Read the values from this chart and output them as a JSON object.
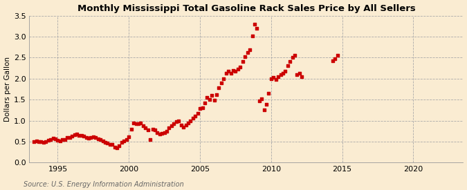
{
  "title": "Monthly Mississippi Total Gasoline Rack Sales Price by All Sellers",
  "ylabel": "Dollars per Gallon",
  "source": "Source: U.S. Energy Information Administration",
  "background_color": "#faecd2",
  "marker_color": "#cc0000",
  "marker": "s",
  "marker_size": 2.5,
  "xlim": [
    1993.0,
    2023.5
  ],
  "ylim": [
    0.0,
    3.5
  ],
  "yticks": [
    0.0,
    0.5,
    1.0,
    1.5,
    2.0,
    2.5,
    3.0,
    3.5
  ],
  "xticks": [
    1995,
    2000,
    2005,
    2010,
    2015,
    2020
  ],
  "data": [
    [
      1993.33,
      0.5
    ],
    [
      1993.5,
      0.52
    ],
    [
      1993.67,
      0.5
    ],
    [
      1993.83,
      0.5
    ],
    [
      1994.0,
      0.49
    ],
    [
      1994.17,
      0.5
    ],
    [
      1994.33,
      0.53
    ],
    [
      1994.5,
      0.55
    ],
    [
      1994.67,
      0.58
    ],
    [
      1994.83,
      0.57
    ],
    [
      1995.0,
      0.53
    ],
    [
      1995.17,
      0.52
    ],
    [
      1995.33,
      0.54
    ],
    [
      1995.5,
      0.55
    ],
    [
      1995.67,
      0.59
    ],
    [
      1995.83,
      0.6
    ],
    [
      1996.0,
      0.63
    ],
    [
      1996.17,
      0.67
    ],
    [
      1996.33,
      0.68
    ],
    [
      1996.5,
      0.65
    ],
    [
      1996.67,
      0.64
    ],
    [
      1996.83,
      0.63
    ],
    [
      1997.0,
      0.6
    ],
    [
      1997.17,
      0.58
    ],
    [
      1997.33,
      0.6
    ],
    [
      1997.5,
      0.62
    ],
    [
      1997.67,
      0.6
    ],
    [
      1997.83,
      0.57
    ],
    [
      1998.0,
      0.54
    ],
    [
      1998.17,
      0.51
    ],
    [
      1998.33,
      0.49
    ],
    [
      1998.5,
      0.47
    ],
    [
      1998.67,
      0.44
    ],
    [
      1998.83,
      0.43
    ],
    [
      1999.0,
      0.37
    ],
    [
      1999.17,
      0.35
    ],
    [
      1999.33,
      0.4
    ],
    [
      1999.5,
      0.48
    ],
    [
      1999.67,
      0.52
    ],
    [
      1999.83,
      0.55
    ],
    [
      2000.0,
      0.62
    ],
    [
      2000.17,
      0.8
    ],
    [
      2000.33,
      0.95
    ],
    [
      2000.5,
      0.93
    ],
    [
      2000.67,
      0.92
    ],
    [
      2000.83,
      0.95
    ],
    [
      2001.0,
      0.88
    ],
    [
      2001.17,
      0.82
    ],
    [
      2001.33,
      0.78
    ],
    [
      2001.5,
      0.55
    ],
    [
      2001.67,
      0.8
    ],
    [
      2001.83,
      0.78
    ],
    [
      2002.0,
      0.72
    ],
    [
      2002.17,
      0.68
    ],
    [
      2002.33,
      0.7
    ],
    [
      2002.5,
      0.72
    ],
    [
      2002.67,
      0.75
    ],
    [
      2002.83,
      0.82
    ],
    [
      2003.0,
      0.88
    ],
    [
      2003.17,
      0.92
    ],
    [
      2003.33,
      0.97
    ],
    [
      2003.5,
      1.0
    ],
    [
      2003.67,
      0.9
    ],
    [
      2003.83,
      0.85
    ],
    [
      2004.0,
      0.9
    ],
    [
      2004.17,
      0.95
    ],
    [
      2004.33,
      1.0
    ],
    [
      2004.5,
      1.05
    ],
    [
      2004.67,
      1.1
    ],
    [
      2004.83,
      1.18
    ],
    [
      2005.0,
      1.28
    ],
    [
      2005.17,
      1.3
    ],
    [
      2005.33,
      1.42
    ],
    [
      2005.5,
      1.55
    ],
    [
      2005.67,
      1.5
    ],
    [
      2005.83,
      1.6
    ],
    [
      2006.0,
      1.48
    ],
    [
      2006.17,
      1.62
    ],
    [
      2006.33,
      1.78
    ],
    [
      2006.5,
      1.9
    ],
    [
      2006.67,
      2.0
    ],
    [
      2006.83,
      2.12
    ],
    [
      2007.0,
      2.18
    ],
    [
      2007.17,
      2.13
    ],
    [
      2007.33,
      2.2
    ],
    [
      2007.5,
      2.18
    ],
    [
      2007.67,
      2.22
    ],
    [
      2007.83,
      2.28
    ],
    [
      2008.0,
      2.4
    ],
    [
      2008.17,
      2.52
    ],
    [
      2008.33,
      2.62
    ],
    [
      2008.5,
      2.68
    ],
    [
      2008.67,
      3.01
    ],
    [
      2008.83,
      3.3
    ],
    [
      2009.0,
      3.2
    ],
    [
      2009.17,
      1.47
    ],
    [
      2009.33,
      1.52
    ],
    [
      2009.5,
      1.25
    ],
    [
      2009.67,
      1.38
    ],
    [
      2009.83,
      1.65
    ],
    [
      2010.0,
      2.0
    ],
    [
      2010.17,
      2.02
    ],
    [
      2010.33,
      1.98
    ],
    [
      2010.5,
      2.04
    ],
    [
      2010.67,
      2.1
    ],
    [
      2010.83,
      2.13
    ],
    [
      2011.0,
      2.18
    ],
    [
      2011.17,
      2.3
    ],
    [
      2011.33,
      2.4
    ],
    [
      2011.5,
      2.5
    ],
    [
      2011.67,
      2.55
    ],
    [
      2011.83,
      2.1
    ],
    [
      2012.0,
      2.12
    ],
    [
      2012.17,
      2.05
    ],
    [
      2014.33,
      2.42
    ],
    [
      2014.5,
      2.48
    ],
    [
      2014.67,
      2.55
    ]
  ]
}
